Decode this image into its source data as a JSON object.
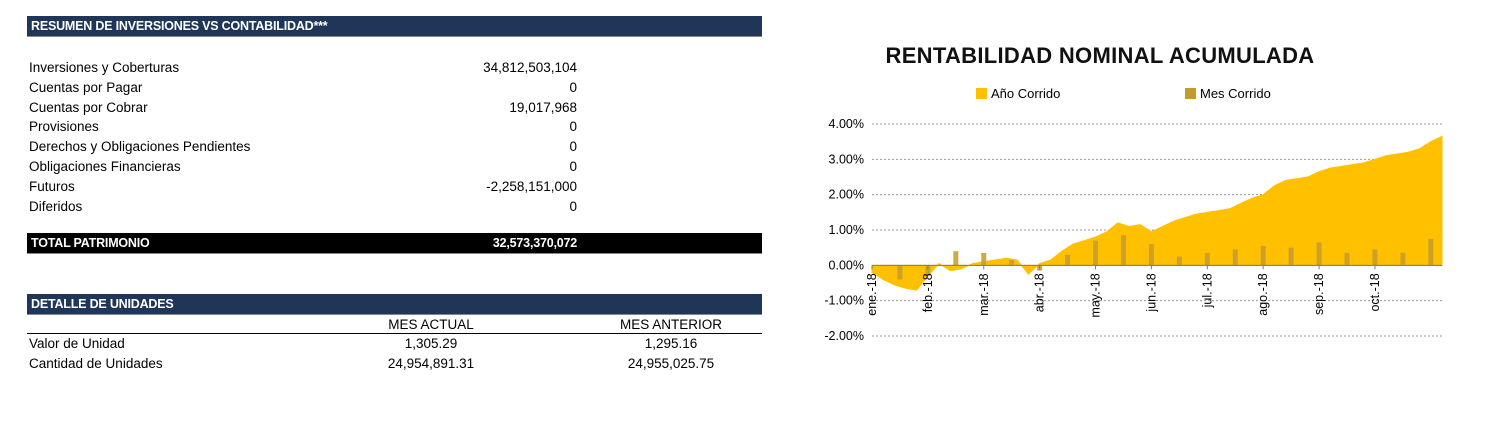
{
  "summary": {
    "header": "RESUMEN DE INVERSIONES VS CONTABILIDAD***",
    "rows": [
      {
        "label": "Inversiones y Coberturas",
        "value": "34,812,503,104"
      },
      {
        "label": "Cuentas por Pagar",
        "value": "0"
      },
      {
        "label": "Cuentas por Cobrar",
        "value": "19,017,968"
      },
      {
        "label": "Provisiones",
        "value": "0"
      },
      {
        "label": "Derechos y Obligaciones Pendientes",
        "value": "0"
      },
      {
        "label": "Obligaciones Financieras",
        "value": "0"
      },
      {
        "label": "Futuros",
        "value": "-2,258,151,000"
      },
      {
        "label": "Diferidos",
        "value": "0"
      }
    ],
    "total_label": "TOTAL PATRIMONIO",
    "total_value": "32,573,370,072"
  },
  "units": {
    "header": "DETALLE DE UNIDADES",
    "col_current": "MES ACTUAL",
    "col_previous": "MES ANTERIOR",
    "rows": [
      {
        "label": "Valor de Unidad",
        "current": "1,305.29",
        "previous": "1,295.16"
      },
      {
        "label": "Cantidad de Unidades",
        "current": "24,954,891.31",
        "previous": "24,955,025.75"
      }
    ]
  },
  "colors": {
    "header_navy": "#1f3658",
    "ano_corrido": "#ffc000",
    "mes_corrido": "#c59a2c"
  },
  "chart_data": {
    "type": "area",
    "title": "RENTABILIDAD NOMINAL ACUMULADA",
    "xlabel": "",
    "ylabel": "",
    "ylim": [
      -0.02,
      0.04
    ],
    "y_ticks": [
      "4.00%",
      "3.00%",
      "2.00%",
      "1.00%",
      "0.00%",
      "-1.00%",
      "-2.00%"
    ],
    "x_ticks": [
      "ene.-18",
      "feb.-18",
      "mar.-18",
      "abr.-18",
      "may.-18",
      "jun.-18",
      "jul.-18",
      "ago.-18",
      "sep.-18",
      "oct.-18"
    ],
    "legend_position": "top",
    "grid": true,
    "series": [
      {
        "name": "Año Corrido",
        "type": "area",
        "x": [
          0,
          0.2,
          0.4,
          0.6,
          0.8,
          1.0,
          1.2,
          1.4,
          1.6,
          1.8,
          2.0,
          2.2,
          2.4,
          2.6,
          2.8,
          3.0,
          3.2,
          3.4,
          3.6,
          3.8,
          4.0,
          4.2,
          4.4,
          4.6,
          4.8,
          5.0,
          5.2,
          5.4,
          5.6,
          5.8,
          6.0,
          6.2,
          6.4,
          6.6,
          6.8,
          7.0,
          7.2,
          7.4,
          7.6,
          7.8,
          8.0,
          8.2,
          8.4,
          8.6,
          8.8,
          9.0,
          9.2,
          9.4,
          9.6,
          9.8,
          10.0,
          10.2
        ],
        "values": [
          -0.002,
          -0.004,
          -0.0055,
          -0.0065,
          -0.007,
          -0.003,
          0.0005,
          -0.0015,
          -0.001,
          0.0005,
          0.001,
          0.0015,
          0.002,
          0.0015,
          -0.0025,
          0.0005,
          0.0015,
          0.004,
          0.006,
          0.007,
          0.008,
          0.0095,
          0.012,
          0.011,
          0.0115,
          0.0095,
          0.011,
          0.0125,
          0.0135,
          0.0145,
          0.015,
          0.0155,
          0.016,
          0.0175,
          0.019,
          0.02,
          0.0225,
          0.024,
          0.0245,
          0.025,
          0.0265,
          0.0275,
          0.028,
          0.0285,
          0.029,
          0.03,
          0.031,
          0.0315,
          0.032,
          0.033,
          0.035,
          0.0365
        ]
      },
      {
        "name": "Mes Corrido",
        "type": "bar",
        "x": [
          0.5,
          1.0,
          1.5,
          2.0,
          2.5,
          3.0,
          3.5,
          4.0,
          4.5,
          5.0,
          5.5,
          6.0,
          6.5,
          7.0,
          7.5,
          8.0,
          8.5,
          9.0,
          9.5,
          10.0
        ],
        "values": [
          -0.004,
          -0.003,
          0.004,
          0.0035,
          0.0015,
          -0.0015,
          0.003,
          0.007,
          0.0085,
          0.006,
          0.0025,
          0.0035,
          0.0045,
          0.0055,
          0.005,
          0.0065,
          0.0035,
          0.0045,
          0.0035,
          0.0075
        ]
      }
    ]
  }
}
